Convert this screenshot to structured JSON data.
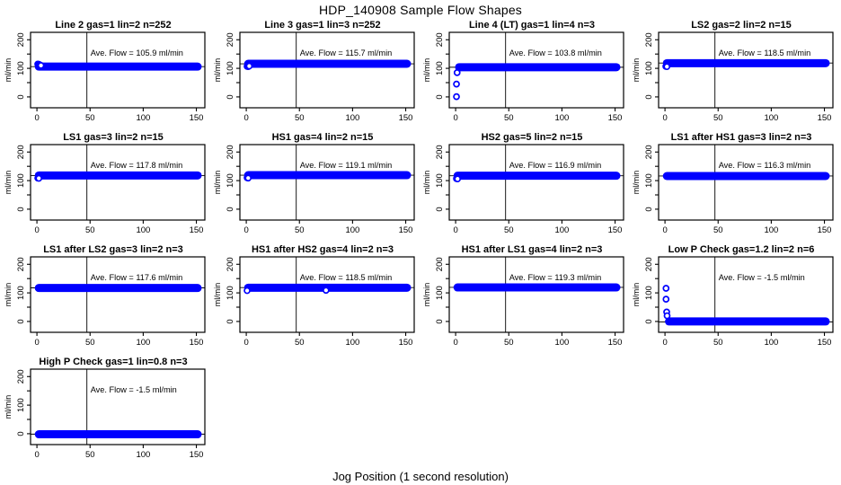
{
  "title": "HDP_140908  Sample Flow Shapes",
  "chart_data": {
    "type": "scatter",
    "title": "HDP_140908  Sample Flow Shapes",
    "xlabel": "Jog Position (1 second resolution)",
    "ylabel": "ml/min",
    "x_ticks": [
      0,
      50,
      100,
      150
    ],
    "y_ticks_major": [
      0,
      100,
      200
    ],
    "y_ticks_minor": [
      50,
      150
    ],
    "xlim": [
      -6,
      158
    ],
    "ylim": [
      -38,
      226
    ],
    "vline_x": 47,
    "point_color": "#0000ff",
    "axis_color": "#000000",
    "legend": "none",
    "grid": "off",
    "plots": [
      {
        "title": "Line 2 gas=1 lin=2 n=252",
        "ave_flow": 105.9,
        "ave_label": "Ave. Flow =  105.9  ml/min",
        "band_y": 106,
        "band_x": [
          0.5,
          152.5
        ],
        "transient_points": [
          [
            0.8,
            115
          ],
          [
            1.8,
            114
          ],
          [
            2.8,
            112
          ],
          [
            3.8,
            110
          ]
        ]
      },
      {
        "title": "Line 3 gas=1 lin=3 n=252",
        "ave_flow": 115.7,
        "ave_label": "Ave. Flow =  115.7  ml/min",
        "band_y": 116,
        "band_x": [
          0.5,
          152.5
        ],
        "transient_points": [
          [
            0.8,
            107
          ],
          [
            1.8,
            106
          ],
          [
            2.8,
            108
          ]
        ]
      },
      {
        "title": "Line 4 (LT) gas=1 lin=4 n=3",
        "ave_flow": 103.8,
        "ave_label": "Ave. Flow =  103.8  ml/min",
        "band_y": 104,
        "band_x": [
          2.0,
          152.5
        ],
        "transient_points": [
          [
            0.8,
            1
          ],
          [
            0.8,
            45
          ],
          [
            1.4,
            85
          ]
        ]
      },
      {
        "title": "LS2 gas=2 lin=2 n=15",
        "ave_flow": 118.5,
        "ave_label": "Ave. Flow =  118.5  ml/min",
        "band_y": 118,
        "band_x": [
          0.5,
          152.5
        ],
        "transient_points": [
          [
            0.8,
            107
          ],
          [
            1.8,
            106
          ]
        ]
      },
      {
        "title": "LS1 gas=3 lin=2 n=15",
        "ave_flow": 117.8,
        "ave_label": "Ave. Flow =  117.8  ml/min",
        "band_y": 118,
        "band_x": [
          0.5,
          152.5
        ],
        "transient_points": [
          [
            0.8,
            109
          ],
          [
            1.8,
            108
          ]
        ]
      },
      {
        "title": "HS1 gas=4 lin=2 n=15",
        "ave_flow": 119.1,
        "ave_label": "Ave. Flow =  119.1  ml/min",
        "band_y": 119,
        "band_x": [
          0.5,
          152.5
        ],
        "transient_points": [
          [
            0.8,
            110
          ],
          [
            1.8,
            109
          ]
        ]
      },
      {
        "title": "HS2 gas=5 lin=2 n=15",
        "ave_flow": 116.9,
        "ave_label": "Ave. Flow =  116.9  ml/min",
        "band_y": 117,
        "band_x": [
          0.5,
          152.5
        ],
        "transient_points": [
          [
            0.8,
            107
          ],
          [
            1.8,
            106
          ]
        ]
      },
      {
        "title": "LS1 after HS1 gas=3 lin=2 n=3",
        "ave_flow": 116.3,
        "ave_label": "Ave. Flow =  116.3  ml/min",
        "band_y": 116,
        "band_x": [
          0.5,
          152.5
        ],
        "transient_points": []
      },
      {
        "title": "LS1 after LS2 gas=3 lin=2 n=3",
        "ave_flow": 117.6,
        "ave_label": "Ave. Flow =  117.6  ml/min",
        "band_y": 117,
        "band_x": [
          0.5,
          152.5
        ],
        "transient_points": []
      },
      {
        "title": "HS1 after HS2 gas=4 lin=2 n=3",
        "ave_flow": 118.5,
        "ave_label": "Ave. Flow =  118.5  ml/min",
        "band_y": 118,
        "band_x": [
          0.5,
          152.5
        ],
        "transient_points": [
          [
            0.8,
            108
          ],
          [
            75,
            109
          ]
        ]
      },
      {
        "title": "HS1 after LS1 gas=4 lin=2 n=3",
        "ave_flow": 119.3,
        "ave_label": "Ave. Flow =  119.3  ml/min",
        "band_y": 119,
        "band_x": [
          0.5,
          152.5
        ],
        "transient_points": []
      },
      {
        "title": "Low P Check gas=1.2 lin=2 n=6",
        "ave_flow": -1.5,
        "ave_label": "Ave. Flow =  -1.5  ml/min",
        "band_y": 0,
        "band_x": [
          2.5,
          152.5
        ],
        "transient_points": [
          [
            1.0,
            116
          ],
          [
            1.0,
            78
          ],
          [
            1.6,
            33
          ],
          [
            2.0,
            20
          ]
        ]
      },
      {
        "title": "High P Check gas=1 lin=0.8 n=3",
        "ave_flow": -1.5,
        "ave_label": "Ave. Flow =  -1.5  ml/min",
        "band_y": -2,
        "band_x": [
          0.5,
          152.5
        ],
        "transient_points": []
      }
    ]
  }
}
